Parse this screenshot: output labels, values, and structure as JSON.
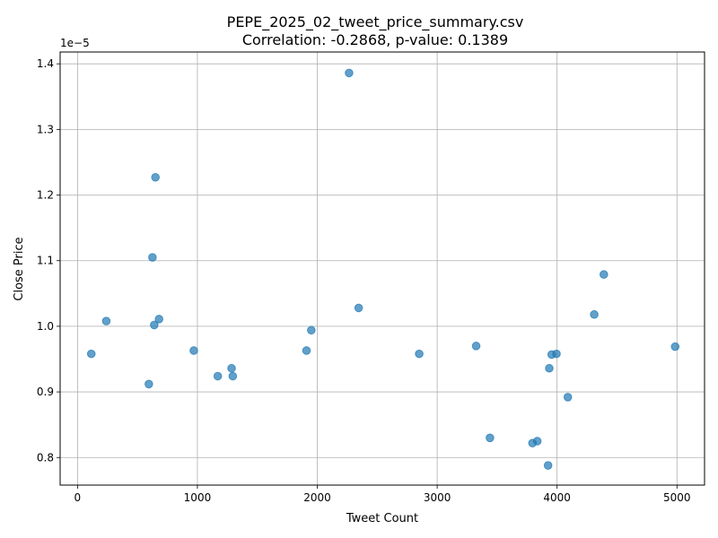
{
  "chart_data": {
    "type": "scatter",
    "title": "PEPE_2025_02_tweet_price_summary.csv",
    "subtitle": "Correlation: -0.2868, p-value: 0.1389",
    "xlabel": "Tweet Count",
    "ylabel": "Close Price",
    "y_offset_label": "1e−5",
    "y_scale_factor": 1e-05,
    "xlim": [
      -145,
      5230
    ],
    "ylim": [
      7.58,
      14.18
    ],
    "xticks": [
      0,
      1000,
      2000,
      3000,
      4000,
      5000
    ],
    "xtick_labels": [
      "0",
      "1000",
      "2000",
      "3000",
      "4000",
      "5000"
    ],
    "yticks": [
      0.8,
      0.9,
      1.0,
      1.1,
      1.2,
      1.3,
      1.4
    ],
    "ytick_labels": [
      "0.8",
      "0.9",
      "1.0",
      "1.1",
      "1.2",
      "1.3",
      "1.4"
    ],
    "grid": true,
    "marker_color": "#1f77b4",
    "marker_alpha": 0.7,
    "points": [
      {
        "x": 115,
        "y": 9.58
      },
      {
        "x": 240,
        "y": 10.08
      },
      {
        "x": 595,
        "y": 9.12
      },
      {
        "x": 625,
        "y": 11.05
      },
      {
        "x": 640,
        "y": 10.02
      },
      {
        "x": 650,
        "y": 12.27
      },
      {
        "x": 680,
        "y": 10.11
      },
      {
        "x": 970,
        "y": 9.63
      },
      {
        "x": 1170,
        "y": 9.24
      },
      {
        "x": 1285,
        "y": 9.36
      },
      {
        "x": 1295,
        "y": 9.24
      },
      {
        "x": 1910,
        "y": 9.63
      },
      {
        "x": 1950,
        "y": 9.94
      },
      {
        "x": 2265,
        "y": 13.86
      },
      {
        "x": 2345,
        "y": 10.28
      },
      {
        "x": 2850,
        "y": 9.58
      },
      {
        "x": 3325,
        "y": 9.7
      },
      {
        "x": 3440,
        "y": 8.3
      },
      {
        "x": 3795,
        "y": 8.22
      },
      {
        "x": 3835,
        "y": 8.25
      },
      {
        "x": 3925,
        "y": 7.88
      },
      {
        "x": 3935,
        "y": 9.36
      },
      {
        "x": 3955,
        "y": 9.57
      },
      {
        "x": 3995,
        "y": 9.58
      },
      {
        "x": 4090,
        "y": 8.92
      },
      {
        "x": 4310,
        "y": 10.18
      },
      {
        "x": 4390,
        "y": 10.79
      },
      {
        "x": 4985,
        "y": 9.69
      }
    ]
  }
}
